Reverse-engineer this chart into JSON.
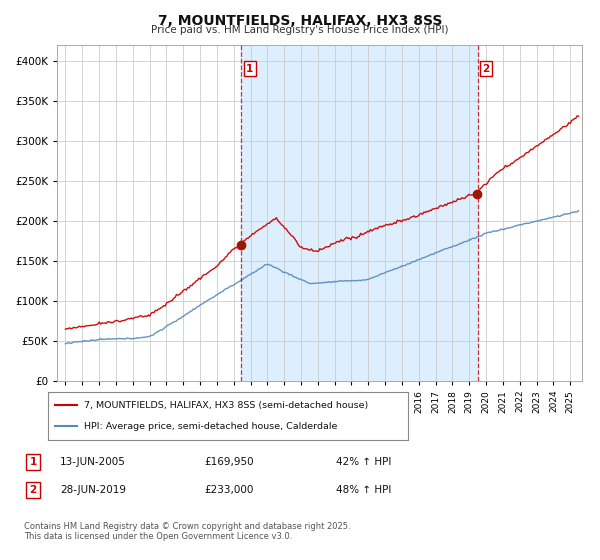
{
  "title": "7, MOUNTFIELDS, HALIFAX, HX3 8SS",
  "subtitle": "Price paid vs. HM Land Registry's House Price Index (HPI)",
  "legend_line1": "7, MOUNTFIELDS, HALIFAX, HX3 8SS (semi-detached house)",
  "legend_line2": "HPI: Average price, semi-detached house, Calderdale",
  "footnote": "Contains HM Land Registry data © Crown copyright and database right 2025.\nThis data is licensed under the Open Government Licence v3.0.",
  "annotation1": {
    "num": "1",
    "date": "13-JUN-2005",
    "price": "£169,950",
    "pct": "42% ↑ HPI"
  },
  "annotation2": {
    "num": "2",
    "date": "28-JUN-2019",
    "price": "£233,000",
    "pct": "48% ↑ HPI"
  },
  "vline1_x": 2005.45,
  "vline2_x": 2019.49,
  "sale1_y": 169950,
  "sale2_y": 233000,
  "ylim": [
    0,
    420000
  ],
  "xlim": [
    1994.5,
    2025.7
  ],
  "yticks": [
    0,
    50000,
    100000,
    150000,
    200000,
    250000,
    300000,
    350000,
    400000
  ],
  "red_color": "#cc0000",
  "blue_color": "#5588bb",
  "shade_color": "#ddeeff",
  "grid_color": "#cccccc",
  "bg_color": "#ffffff"
}
